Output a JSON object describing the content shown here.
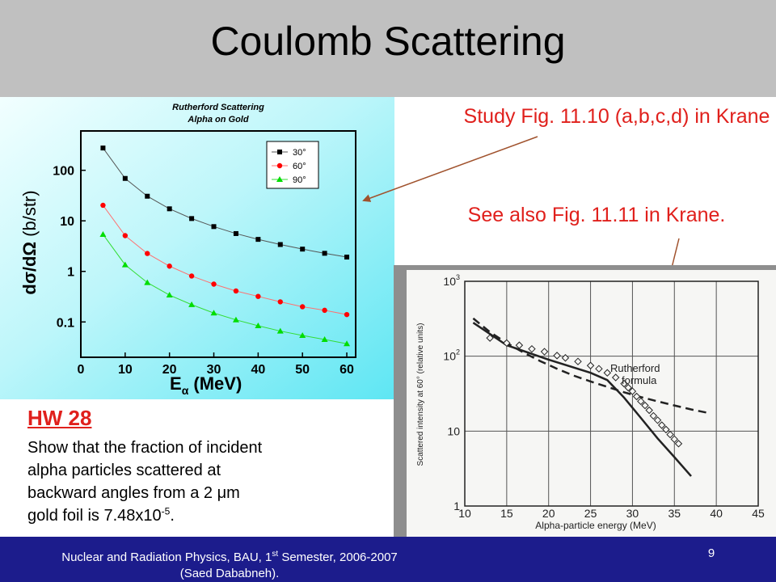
{
  "slide": {
    "title": "Coulomb Scattering",
    "page_number": "9",
    "footer": {
      "line1_pre": "Nuclear and Radiation Physics, BAU, 1",
      "line1_sup": "st",
      "line1_post": " Semester, 2006-2007",
      "line2": "(Saed Dababneh)."
    },
    "colors": {
      "title_band": "#c0c0c0",
      "footer_band": "#1c1c8c",
      "note_red": "#e0201c",
      "arrow": "#a0522d"
    }
  },
  "notes": {
    "study": "Study Fig. 11.10 (a,b,c,d) in Krane",
    "see_also": "See also Fig. 11.11 in Krane."
  },
  "homework": {
    "title": "HW 28",
    "line1": "Show that the fraction of incident",
    "line2": "alpha particles scattered at",
    "line3_pre": "backward angles from a 2 ",
    "line3_mu": "μ",
    "line3_post": "m",
    "line4_pre": "gold foil is 7.48x10",
    "line4_sup": "-5",
    "line4_post": "."
  },
  "chart_data": [
    {
      "type": "scatter",
      "title": "Rutherford Scattering",
      "subtitle": "Alpha on Gold",
      "xlabel": "E",
      "xlabel_sub": "α",
      "xlabel_unit": " (MeV)",
      "ylabel": "dσ/dΩ",
      "ylabel_unit": " (b/str)",
      "y_scale": "log",
      "xlim": [
        0,
        62
      ],
      "ylim": [
        0.02,
        600
      ],
      "x_ticks": [
        0,
        10,
        20,
        30,
        40,
        50,
        60
      ],
      "y_ticks": [
        {
          "value": 0.1,
          "label": "0.1"
        },
        {
          "value": 1,
          "label": "1"
        },
        {
          "value": 10,
          "label": "10"
        },
        {
          "value": 100,
          "label": "100"
        }
      ],
      "legend_position": "top-right",
      "x": [
        5,
        10,
        15,
        20,
        25,
        30,
        35,
        40,
        45,
        50,
        55,
        60
      ],
      "series": [
        {
          "name": "30°",
          "marker": "square",
          "color": "#000000",
          "line_color": "#555555",
          "values": [
            276,
            69,
            30.7,
            17.3,
            11.1,
            7.7,
            5.6,
            4.3,
            3.4,
            2.76,
            2.28,
            1.92
          ]
        },
        {
          "name": "60°",
          "marker": "circle",
          "color": "#ff0000",
          "line_color": "#ff7070",
          "values": [
            20.3,
            5.1,
            2.26,
            1.27,
            0.81,
            0.56,
            0.41,
            0.32,
            0.25,
            0.2,
            0.17,
            0.14
          ]
        },
        {
          "name": "90°",
          "marker": "triangle",
          "color": "#00dd00",
          "line_color": "#33dd33",
          "values": [
            5.4,
            1.35,
            0.6,
            0.34,
            0.22,
            0.15,
            0.11,
            0.084,
            0.066,
            0.054,
            0.045,
            0.037
          ]
        }
      ]
    },
    {
      "type": "scatter",
      "xlabel": "Alpha-particle energy (MeV)",
      "ylabel": "Scattered intensity at 60° (relative units)",
      "y_scale": "log",
      "xlim": [
        10,
        45
      ],
      "ylim": [
        1,
        1000
      ],
      "x_ticks": [
        10,
        15,
        20,
        25,
        30,
        35,
        40,
        45
      ],
      "y_ticks": [
        {
          "value": 1,
          "label": "1"
        },
        {
          "value": 10,
          "label": "10"
        },
        {
          "value": 100,
          "label": "10",
          "sup": "2"
        },
        {
          "value": 1000,
          "label": "10",
          "sup": "3"
        }
      ],
      "curve_label_1": "Rutherford",
      "curve_label_2": "formula",
      "rutherford_curve": {
        "x": [
          11,
          13,
          15,
          17,
          19,
          21,
          23,
          25,
          27,
          29,
          31,
          33,
          35,
          37,
          39
        ],
        "y": [
          320,
          210,
          150,
          112,
          86,
          68,
          55,
          46,
          39,
          33,
          28.5,
          25,
          22,
          19.5,
          17.5
        ]
      },
      "measured_curve": {
        "x": [
          11,
          15,
          20,
          25,
          27,
          29,
          31,
          33,
          35,
          37
        ],
        "y": [
          280,
          140,
          90,
          60,
          48,
          28,
          15,
          8,
          4.5,
          2.5
        ]
      },
      "points": {
        "x": [
          13,
          15,
          16.5,
          18,
          19.5,
          21,
          22,
          23.5,
          25,
          26,
          27,
          28,
          29,
          29.5,
          30,
          30.5,
          31,
          31.5,
          32,
          32.5,
          33,
          33.5,
          34,
          34.5,
          35,
          35.5
        ],
        "y": [
          175,
          150,
          140,
          125,
          115,
          102,
          95,
          85,
          75,
          68,
          60,
          52,
          43,
          38,
          34,
          29,
          25,
          22,
          19,
          16,
          14,
          12,
          10.5,
          9,
          7.8,
          6.8
        ]
      }
    }
  ]
}
